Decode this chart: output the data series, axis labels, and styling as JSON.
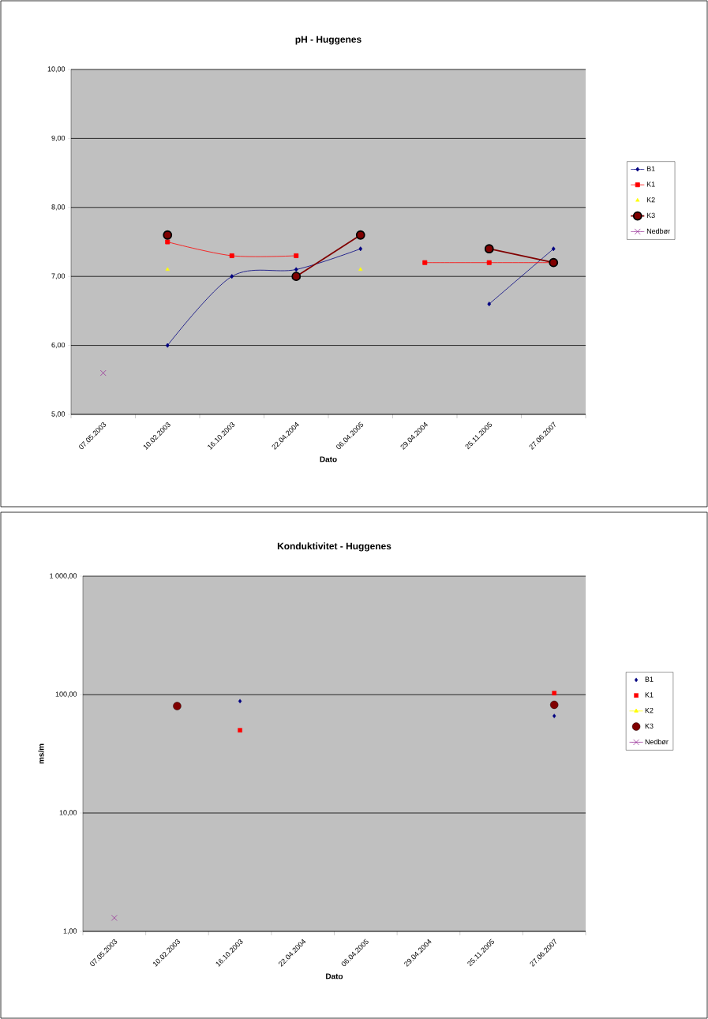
{
  "chart_data": [
    {
      "type": "line",
      "title": "pH - Huggenes",
      "xlabel": "Dato",
      "categories": [
        "07.05.2003",
        "10.02.2003",
        "16.10.2003",
        "22.04.2004",
        "06.04.2005",
        "29.04.2004",
        "25.11.2005",
        "27.06.2007"
      ],
      "series": [
        {
          "name": "B1",
          "color": "#000080",
          "marker": "diamond",
          "values": [
            null,
            6.0,
            7.0,
            7.1,
            7.4,
            null,
            6.6,
            7.4
          ]
        },
        {
          "name": "K1",
          "color": "#ff0000",
          "marker": "square",
          "values": [
            null,
            7.5,
            7.3,
            7.3,
            null,
            7.2,
            7.2,
            7.2
          ]
        },
        {
          "name": "K2",
          "type": "scatter",
          "color": "#ffff00",
          "marker": "triangle",
          "values": [
            null,
            7.1,
            null,
            null,
            7.1,
            null,
            null,
            null
          ]
        },
        {
          "name": "K3",
          "color": "#800000",
          "marker": "circle",
          "values": [
            null,
            7.6,
            null,
            7.0,
            7.6,
            null,
            7.4,
            7.2
          ]
        },
        {
          "name": "Nedbør",
          "color": "#993399",
          "marker": "cross",
          "values": [
            5.6,
            null,
            null,
            null,
            null,
            null,
            null,
            null
          ]
        }
      ],
      "ylim": [
        5,
        10
      ],
      "yticks": [
        {
          "value": 5,
          "label": "5,00"
        },
        {
          "value": 6,
          "label": "6,00"
        },
        {
          "value": 7,
          "label": "7,00"
        },
        {
          "value": 8,
          "label": "8,00"
        },
        {
          "value": 9,
          "label": "9,00"
        },
        {
          "value": 10,
          "label": "10,00"
        }
      ],
      "grid": "y",
      "legend": "right",
      "line_style": "solid"
    },
    {
      "type": "line",
      "title": "Konduktivitet - Huggenes",
      "xlabel": "Dato",
      "ylabel": "ms/m",
      "categories": [
        "07.05.2003",
        "10.02.2003",
        "16.10.2003",
        "22.04.2004",
        "06.04.2005",
        "29.04.2004",
        "25.11.2005",
        "27.06.2007"
      ],
      "series": [
        {
          "name": "B1",
          "type": "scatter",
          "color": "#000080",
          "marker": "diamond",
          "values": [
            null,
            null,
            88,
            null,
            null,
            null,
            null,
            66
          ]
        },
        {
          "name": "K1",
          "type": "scatter",
          "color": "#ff0000",
          "marker": "square",
          "values": [
            null,
            null,
            50,
            null,
            null,
            null,
            null,
            103
          ]
        },
        {
          "name": "K2",
          "color": "#ffff00",
          "marker": "triangle",
          "values": [
            null,
            null,
            null,
            null,
            null,
            null,
            null,
            null
          ]
        },
        {
          "name": "K3",
          "type": "scatter",
          "color": "#800000",
          "marker": "circle",
          "values": [
            null,
            80,
            null,
            null,
            null,
            null,
            null,
            82
          ]
        },
        {
          "name": "Nedbør",
          "color": "#993399",
          "marker": "cross",
          "values": [
            1.3,
            null,
            null,
            null,
            null,
            null,
            null,
            null
          ]
        }
      ],
      "log": "y",
      "ylim": [
        1,
        1000
      ],
      "yticks": [
        {
          "value": 1,
          "label": "1,00"
        },
        {
          "value": 10,
          "label": "10,00"
        },
        {
          "value": 100,
          "label": "100,00"
        },
        {
          "value": 1000,
          "label": "1 000,00"
        }
      ],
      "grid": "y",
      "legend": "right",
      "line_style": "solid"
    }
  ]
}
